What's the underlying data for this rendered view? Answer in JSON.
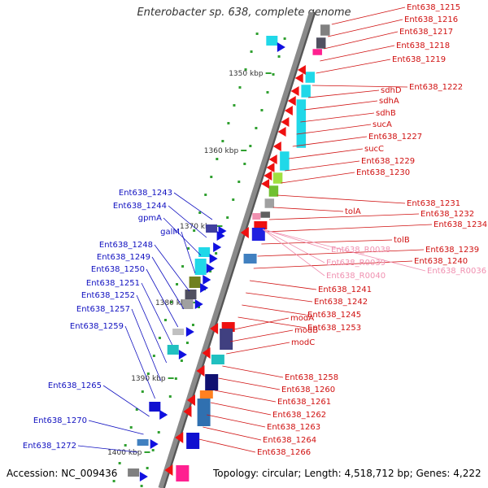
{
  "title": "Enterobacter sp. 638, complete genome",
  "footer": {
    "accession": "Accession: NC_009436",
    "topology": "Topology: circular; Length: 4,518,712 bp; Genes: 4,222"
  },
  "colors": {
    "backbone": "#8a8a8a",
    "forward_label": "#1010c0",
    "reverse_label": "#d01010",
    "rna_label": "#f090b0",
    "tick": "#30a030"
  },
  "scale_labels": [
    {
      "label": "1350 kbp"
    },
    {
      "label": "1360 kbp"
    },
    {
      "label": "1370 kbp"
    },
    {
      "label": "1380 kbp"
    },
    {
      "label": "1390 kbp"
    },
    {
      "label": "1400 kbp"
    }
  ],
  "forward_genes": [
    "Ent638_1243",
    "Ent638_1244",
    "gpmA",
    "galM",
    "Ent638_1248",
    "Ent638_1249",
    "Ent638_1250",
    "Ent638_1251",
    "Ent638_1252",
    "Ent638_1257",
    "Ent638_1259",
    "Ent638_1265",
    "Ent638_1270",
    "Ent638_1272"
  ],
  "reverse_genes": [
    "Ent638_1215",
    "Ent638_1216",
    "Ent638_1217",
    "Ent638_1218",
    "Ent638_1219",
    "Ent638_1222",
    "sdhD",
    "sdhA",
    "sdhB",
    "sucA",
    "Ent638_1227",
    "sucC",
    "Ent638_1229",
    "Ent638_1230",
    "Ent638_1231",
    "tolA",
    "Ent638_1232",
    "Ent638_1234",
    "tolB",
    "Ent638_1239",
    "Ent638_1240",
    "Ent638_1241",
    "Ent638_1242",
    "Ent638_1245",
    "Ent638_1253",
    "modA",
    "modB",
    "modC",
    "Ent638_1258",
    "Ent638_1260",
    "Ent638_1261",
    "Ent638_1262",
    "Ent638_1263",
    "Ent638_1264",
    "Ent638_1266"
  ],
  "rna_genes": [
    "Ent638_R0038",
    "Ent638_R0039",
    "Ent638_R0040",
    "Ent638_R0036"
  ]
}
